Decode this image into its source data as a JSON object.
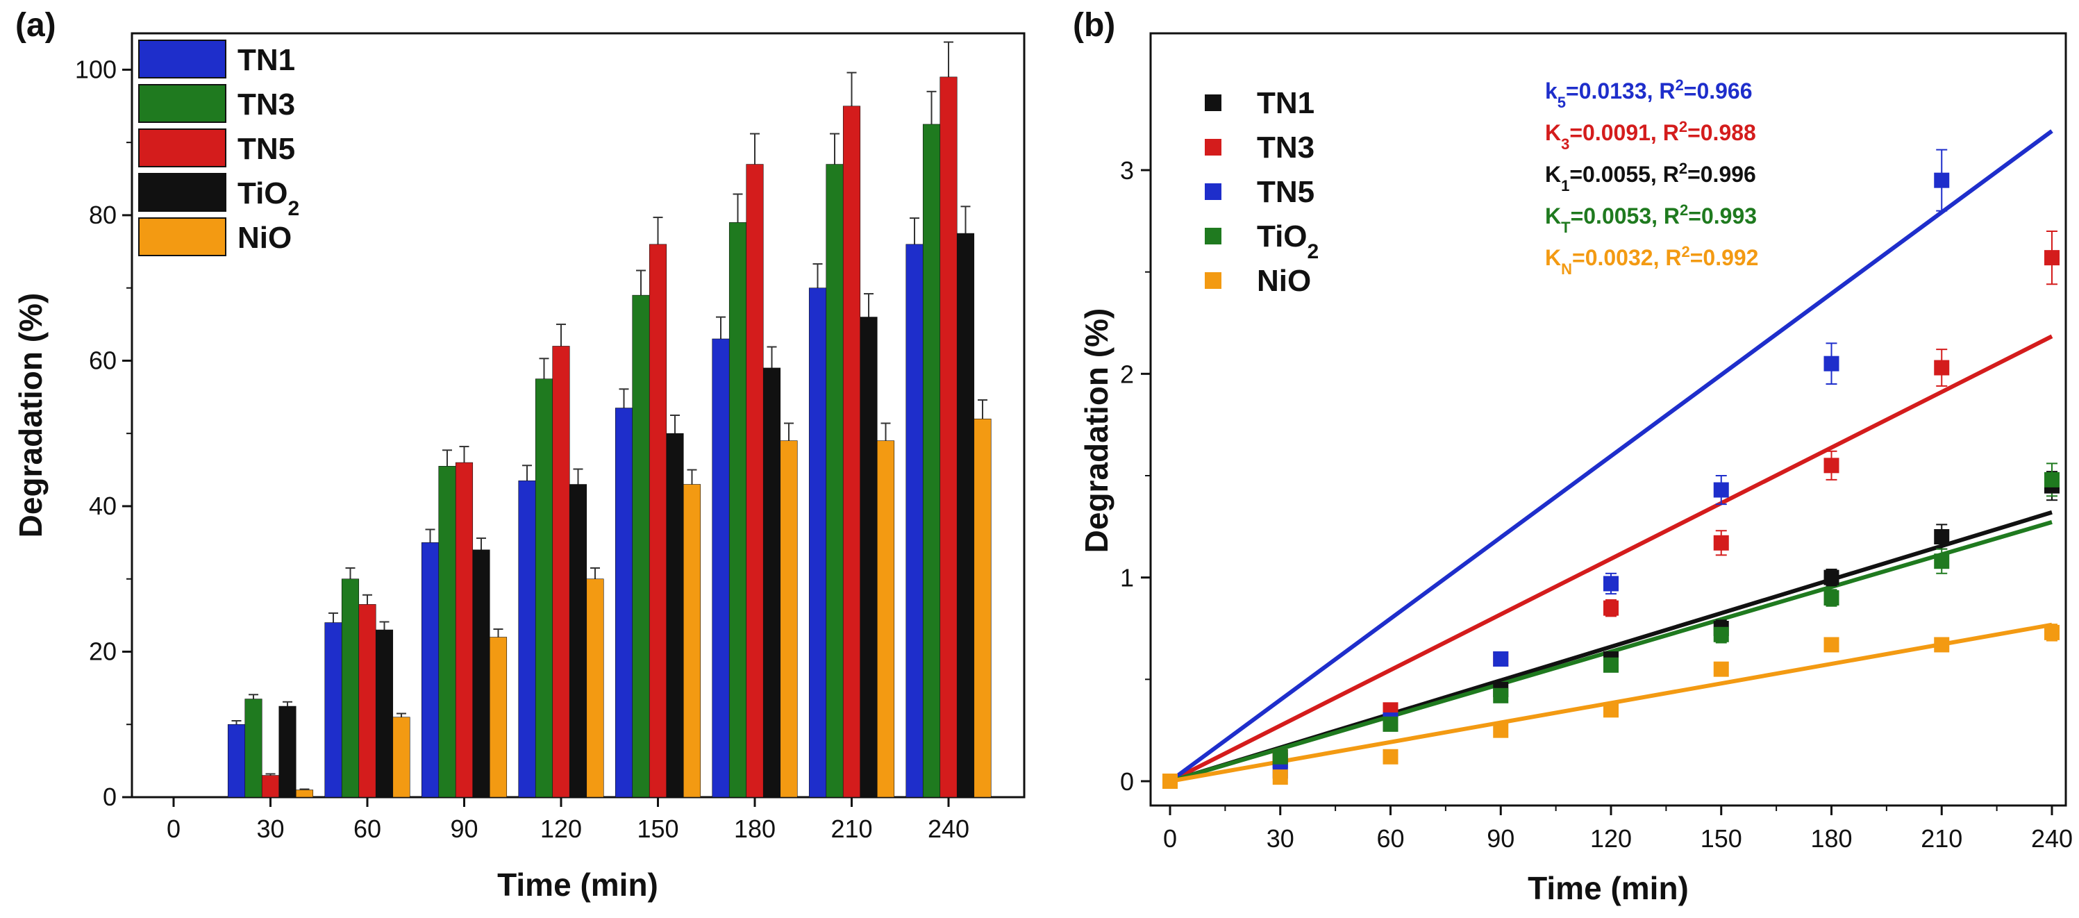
{
  "chart_data": [
    {
      "panel": "(a)",
      "type": "bar",
      "xlabel": "Time (min)",
      "ylabel": "Degradation (%)",
      "ylim": [
        0,
        105
      ],
      "yticks": [
        0,
        20,
        40,
        60,
        80,
        100
      ],
      "categories": [
        "0",
        "30",
        "60",
        "90",
        "120",
        "150",
        "180",
        "210",
        "240"
      ],
      "legend_position": "top-left",
      "series": [
        {
          "name": "TN1",
          "sub": "",
          "color": "#1e2ecb",
          "values": [
            0,
            10,
            24,
            35,
            43.5,
            53.5,
            63,
            70,
            76
          ],
          "errors": [
            0,
            0.5,
            1.3,
            1.8,
            2.1,
            2.6,
            3.0,
            3.3,
            3.6
          ]
        },
        {
          "name": "TN3",
          "sub": "",
          "color": "#1f7a1f",
          "values": [
            0,
            13.5,
            30,
            45.5,
            57.5,
            69,
            79,
            87,
            92.5
          ],
          "errors": [
            0,
            0.6,
            1.5,
            2.2,
            2.8,
            3.4,
            3.9,
            4.2,
            4.5
          ]
        },
        {
          "name": "TN5",
          "sub": "",
          "color": "#d41c1c",
          "values": [
            0,
            3,
            26.5,
            46,
            62,
            76,
            87,
            95,
            99
          ],
          "errors": [
            0,
            0.2,
            1.3,
            2.2,
            3.0,
            3.7,
            4.2,
            4.6,
            4.8
          ]
        },
        {
          "name": "TiO",
          "sub": "2",
          "color": "#111111",
          "values": [
            0,
            12.5,
            23,
            34,
            43,
            50,
            59,
            66,
            77.5
          ],
          "errors": [
            0,
            0.6,
            1.1,
            1.6,
            2.1,
            2.5,
            2.9,
            3.2,
            3.7
          ]
        },
        {
          "name": "NiO",
          "sub": "",
          "color": "#f39a12",
          "values": [
            0,
            1,
            11,
            22,
            30,
            43,
            49,
            49,
            52
          ],
          "errors": [
            0,
            0.1,
            0.5,
            1.1,
            1.5,
            2.0,
            2.4,
            2.4,
            2.6
          ]
        }
      ]
    },
    {
      "panel": "(b)",
      "type": "scatter",
      "xlabel": "Time (min)",
      "ylabel": "Degradation (%)",
      "xlim": [
        0,
        240
      ],
      "ylim": [
        -0.05,
        3.5
      ],
      "xticks": [
        0,
        30,
        60,
        90,
        120,
        150,
        180,
        210,
        240
      ],
      "yticks": [
        0,
        1,
        2,
        3
      ],
      "x": [
        0,
        30,
        60,
        90,
        120,
        150,
        180,
        210,
        240
      ],
      "legend_position": "top-left",
      "series": [
        {
          "name": "TN1",
          "sub": "",
          "color": "#111111",
          "slope": 0.0055,
          "values": [
            0,
            0.1,
            0.3,
            0.45,
            0.6,
            0.75,
            1.0,
            1.2,
            1.45
          ],
          "errors": [
            0,
            0.03,
            0.03,
            0.03,
            0.03,
            0.04,
            0.04,
            0.06,
            0.07
          ],
          "fit_label": {
            "k": "K",
            "k_sub": "1",
            "k_val": "=0.0055, R",
            "r2_sup": "2",
            "r2_val": "=0.996"
          }
        },
        {
          "name": "TN3",
          "sub": "",
          "color": "#d41c1c",
          "slope": 0.0091,
          "values": [
            0,
            0.12,
            0.35,
            0.6,
            0.85,
            1.17,
            1.55,
            2.03,
            2.57
          ],
          "errors": [
            0,
            0.03,
            0.03,
            0.03,
            0.04,
            0.06,
            0.07,
            0.09,
            0.13
          ],
          "fit_label": {
            "k": "K",
            "k_sub": "3",
            "k_val": "=0.0091, R",
            "r2_sup": "2",
            "r2_val": "=0.988"
          }
        },
        {
          "name": "TN5",
          "sub": "",
          "color": "#1e2ecb",
          "slope": 0.0133,
          "values": [
            0,
            0.05,
            0.3,
            0.6,
            0.97,
            1.43,
            2.05,
            2.95,
            null
          ],
          "errors": [
            0,
            0.03,
            0.03,
            0.03,
            0.05,
            0.07,
            0.1,
            0.15,
            0
          ],
          "fit_label": {
            "k": "k",
            "k_sub": "5",
            "k_val": "=0.0133, R",
            "r2_sup": "2",
            "r2_val": "=0.966"
          }
        },
        {
          "name": "TiO",
          "sub": "2",
          "color": "#1f7a1f",
          "slope": 0.0053,
          "values": [
            0,
            0.12,
            0.28,
            0.42,
            0.57,
            0.72,
            0.9,
            1.08,
            1.48
          ],
          "errors": [
            0,
            0.03,
            0.03,
            0.03,
            0.03,
            0.04,
            0.04,
            0.06,
            0.08
          ],
          "fit_label": {
            "k": "K",
            "k_sub": "T",
            "k_val": "=0.0053, R",
            "r2_sup": "2",
            "r2_val": "=0.993"
          }
        },
        {
          "name": "NiO",
          "sub": "",
          "color": "#f39a12",
          "slope": 0.0032,
          "values": [
            0,
            0.02,
            0.12,
            0.25,
            0.35,
            0.55,
            0.67,
            0.67,
            0.73
          ],
          "errors": [
            0,
            0.02,
            0.02,
            0.02,
            0.02,
            0.03,
            0.03,
            0.03,
            0.04
          ],
          "fit_label": {
            "k": "K",
            "k_sub": "N",
            "k_val": "=0.0032, R",
            "r2_sup": "2",
            "r2_val": "=0.992"
          }
        }
      ]
    }
  ]
}
